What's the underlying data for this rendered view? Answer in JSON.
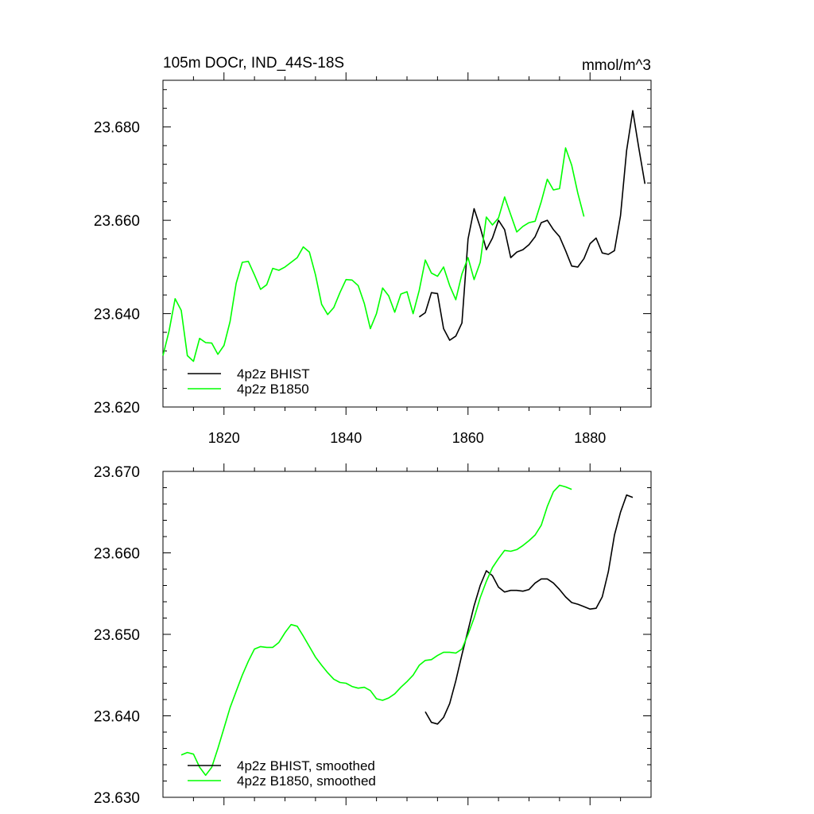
{
  "chart_data": [
    {
      "type": "line",
      "title": "105m DOCr, IND_44S-18S",
      "units": "mmol/m^3",
      "xlim": [
        1810,
        1890
      ],
      "ylim": [
        23.62,
        23.69
      ],
      "xticks": [
        1820,
        1840,
        1860,
        1880
      ],
      "xtick_labels": [
        "1820",
        "1840",
        "1860",
        "1880"
      ],
      "yticks": [
        23.62,
        23.64,
        23.66,
        23.68
      ],
      "ytick_labels": [
        "23.620",
        "23.640",
        "23.660",
        "23.680"
      ],
      "legend_position": "bottom-left",
      "series": [
        {
          "name": "4p2z BHIST",
          "color": "#000000",
          "x": [
            1852,
            1853,
            1854,
            1855,
            1856,
            1857,
            1858,
            1859,
            1860,
            1861,
            1862,
            1863,
            1864,
            1865,
            1866,
            1867,
            1868,
            1869,
            1870,
            1871,
            1872,
            1873,
            1874,
            1875,
            1876,
            1877,
            1878,
            1879,
            1880,
            1881,
            1882,
            1883,
            1884,
            1885,
            1886,
            1887,
            1888,
            1889
          ],
          "y": [
            23.6393,
            23.6402,
            23.6445,
            23.6443,
            23.6368,
            23.6343,
            23.6352,
            23.638,
            23.656,
            23.6625,
            23.6585,
            23.6537,
            23.6562,
            23.66,
            23.658,
            23.652,
            23.6532,
            23.6537,
            23.6548,
            23.6565,
            23.6595,
            23.66,
            23.658,
            23.6565,
            23.6535,
            23.6502,
            23.65,
            23.6518,
            23.655,
            23.6562,
            23.653,
            23.6527,
            23.6535,
            23.661,
            23.675,
            23.6835,
            23.6755,
            23.6678
          ]
        },
        {
          "name": "4p2z B1850",
          "color": "#00ff00",
          "x": [
            1810,
            1811,
            1812,
            1813,
            1814,
            1815,
            1816,
            1817,
            1818,
            1819,
            1820,
            1821,
            1822,
            1823,
            1824,
            1825,
            1826,
            1827,
            1828,
            1829,
            1830,
            1831,
            1832,
            1833,
            1834,
            1835,
            1836,
            1837,
            1838,
            1839,
            1840,
            1841,
            1842,
            1843,
            1844,
            1845,
            1846,
            1847,
            1848,
            1849,
            1850,
            1851,
            1852,
            1853,
            1854,
            1855,
            1856,
            1857,
            1858,
            1859,
            1860,
            1861,
            1862,
            1863,
            1864,
            1865,
            1866,
            1867,
            1868,
            1869,
            1870,
            1871,
            1872,
            1873,
            1874,
            1875,
            1876,
            1877,
            1878,
            1879
          ],
          "y": [
            23.631,
            23.6363,
            23.6432,
            23.6407,
            23.631,
            23.6298,
            23.6347,
            23.6338,
            23.6337,
            23.6313,
            23.6332,
            23.6383,
            23.6465,
            23.651,
            23.6512,
            23.6483,
            23.6452,
            23.6462,
            23.6497,
            23.6493,
            23.65,
            23.651,
            23.652,
            23.6543,
            23.6532,
            23.6483,
            23.642,
            23.6398,
            23.6413,
            23.6445,
            23.6473,
            23.6472,
            23.646,
            23.6422,
            23.6368,
            23.64,
            23.6455,
            23.6438,
            23.6403,
            23.6442,
            23.6447,
            23.64,
            23.645,
            23.6515,
            23.6487,
            23.648,
            23.65,
            23.646,
            23.643,
            23.6485,
            23.652,
            23.6473,
            23.651,
            23.6607,
            23.659,
            23.6605,
            23.665,
            23.6612,
            23.6575,
            23.6587,
            23.6595,
            23.6598,
            23.664,
            23.6688,
            23.6665,
            23.6668,
            23.6755,
            23.6718,
            23.6658,
            23.6608
          ]
        }
      ]
    },
    {
      "type": "line",
      "title": "",
      "xlim": [
        1810,
        1890
      ],
      "ylim": [
        23.63,
        23.67
      ],
      "xticks": [
        1820,
        1840,
        1860,
        1880
      ],
      "yticks": [
        23.63,
        23.64,
        23.65,
        23.66,
        23.67
      ],
      "ytick_labels": [
        "23.630",
        "23.640",
        "23.650",
        "23.660",
        "23.670"
      ],
      "legend_position": "bottom-left",
      "series": [
        {
          "name": "4p2z BHIST, smoothed",
          "color": "#000000",
          "x": [
            1853,
            1854,
            1855,
            1856,
            1857,
            1858,
            1859,
            1860,
            1861,
            1862,
            1863,
            1864,
            1865,
            1866,
            1867,
            1868,
            1869,
            1870,
            1871,
            1872,
            1873,
            1874,
            1875,
            1876,
            1877,
            1878,
            1879,
            1880,
            1881,
            1882,
            1883,
            1884,
            1885,
            1886,
            1887
          ],
          "y": [
            23.6405,
            23.6392,
            23.639,
            23.6398,
            23.6415,
            23.6443,
            23.6475,
            23.6505,
            23.6535,
            23.656,
            23.6578,
            23.6572,
            23.6558,
            23.6552,
            23.6554,
            23.6554,
            23.6553,
            23.6555,
            23.6563,
            23.6568,
            23.6568,
            23.6563,
            23.6555,
            23.6546,
            23.6539,
            23.6537,
            23.6534,
            23.6531,
            23.6532,
            23.6546,
            23.6577,
            23.6622,
            23.665,
            23.6671,
            23.6668
          ]
        },
        {
          "name": "4p2z B1850, smoothed",
          "color": "#00ff00",
          "x": [
            1813,
            1814,
            1815,
            1816,
            1817,
            1818,
            1819,
            1820,
            1821,
            1822,
            1823,
            1824,
            1825,
            1826,
            1827,
            1828,
            1829,
            1830,
            1831,
            1832,
            1833,
            1834,
            1835,
            1836,
            1837,
            1838,
            1839,
            1840,
            1841,
            1842,
            1843,
            1844,
            1845,
            1846,
            1847,
            1848,
            1849,
            1850,
            1851,
            1852,
            1853,
            1854,
            1855,
            1856,
            1857,
            1858,
            1859,
            1860,
            1861,
            1862,
            1863,
            1864,
            1865,
            1866,
            1867,
            1868,
            1869,
            1870,
            1871,
            1872,
            1873,
            1874,
            1875,
            1876,
            1877
          ],
          "y": [
            23.6352,
            23.6355,
            23.6353,
            23.6337,
            23.6327,
            23.6337,
            23.636,
            23.6385,
            23.641,
            23.643,
            23.645,
            23.6467,
            23.6482,
            23.6485,
            23.6484,
            23.6484,
            23.649,
            23.6502,
            23.6512,
            23.651,
            23.6498,
            23.6485,
            23.6472,
            23.6462,
            23.6453,
            23.6445,
            23.6441,
            23.644,
            23.6436,
            23.6434,
            23.6435,
            23.6431,
            23.6421,
            23.6419,
            23.6422,
            23.6427,
            23.6435,
            23.6442,
            23.645,
            23.6462,
            23.6468,
            23.6469,
            23.6474,
            23.6478,
            23.6478,
            23.6477,
            23.6482,
            23.65,
            23.652,
            23.6545,
            23.6565,
            23.6582,
            23.6593,
            23.6603,
            23.6602,
            23.6604,
            23.6609,
            23.6615,
            23.6622,
            23.6634,
            23.6657,
            23.6675,
            23.6683,
            23.6681,
            23.6678
          ]
        }
      ]
    }
  ]
}
